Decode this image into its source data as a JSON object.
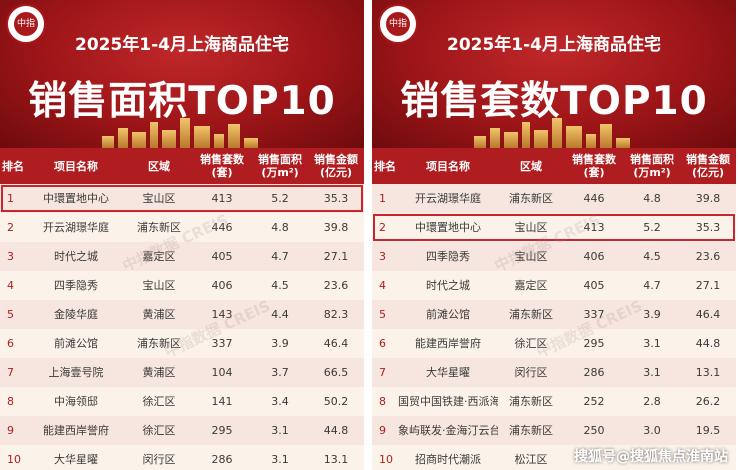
{
  "brand_logo_text": "中指",
  "left": {
    "year_title": "2025年1-4月上海商品住宅",
    "big_title": "销售面积TOP10",
    "headers": {
      "rank": "排名",
      "name": "项目名称",
      "area": "区域",
      "sets": "销售套数\n(套)",
      "sqm": "销售面积\n(万m²)",
      "amount": "销售金额\n(亿元)"
    },
    "rows": [
      [
        "1",
        "中環置地中心",
        "宝山区",
        "413",
        "5.2",
        "35.3"
      ],
      [
        "2",
        "开云湖璟华庭",
        "浦东新区",
        "446",
        "4.8",
        "39.8"
      ],
      [
        "3",
        "时代之城",
        "嘉定区",
        "405",
        "4.7",
        "27.1"
      ],
      [
        "4",
        "四季隐秀",
        "宝山区",
        "406",
        "4.5",
        "23.6"
      ],
      [
        "5",
        "金陵华庭",
        "黄浦区",
        "143",
        "4.4",
        "82.3"
      ],
      [
        "6",
        "前滩公馆",
        "浦东新区",
        "337",
        "3.9",
        "46.4"
      ],
      [
        "7",
        "上海壹号院",
        "黄浦区",
        "104",
        "3.7",
        "66.5"
      ],
      [
        "8",
        "中海领邸",
        "徐汇区",
        "141",
        "3.4",
        "50.2"
      ],
      [
        "9",
        "能建西岸誉府",
        "徐汇区",
        "295",
        "3.1",
        "44.8"
      ],
      [
        "10",
        "大华星曜",
        "闵行区",
        "286",
        "3.1",
        "13.1"
      ]
    ],
    "highlight_row": 0
  },
  "right": {
    "year_title": "2025年1-4月上海商品住宅",
    "big_title": "销售套数TOP10",
    "headers": {
      "rank": "排名",
      "name": "项目名称",
      "area": "区域",
      "sets": "销售套数\n(套)",
      "sqm": "销售面积\n(万m²)",
      "amount": "销售金额\n(亿元)"
    },
    "rows": [
      [
        "1",
        "开云湖璟华庭",
        "浦东新区",
        "446",
        "4.8",
        "39.8"
      ],
      [
        "2",
        "中環置地中心",
        "宝山区",
        "413",
        "5.2",
        "35.3"
      ],
      [
        "3",
        "四季隐秀",
        "宝山区",
        "406",
        "4.5",
        "23.6"
      ],
      [
        "4",
        "时代之城",
        "嘉定区",
        "405",
        "4.7",
        "27.1"
      ],
      [
        "5",
        "前滩公馆",
        "浦东新区",
        "337",
        "3.9",
        "46.4"
      ],
      [
        "6",
        "能建西岸誉府",
        "徐汇区",
        "295",
        "3.1",
        "44.8"
      ],
      [
        "7",
        "大华星曜",
        "闵行区",
        "286",
        "3.1",
        "13.1"
      ],
      [
        "8",
        "国贸中国铁建·西派海上",
        "浦东新区",
        "252",
        "2.8",
        "26.2"
      ],
      [
        "9",
        "象屿联发·金海汀云台",
        "浦东新区",
        "250",
        "3.0",
        "19.5"
      ],
      [
        "10",
        "招商时代潮派",
        "松江区",
        "",
        "",
        ""
      ]
    ],
    "highlight_row": 1
  },
  "watermark": "中指数据 CREIS",
  "footer_mark": "搜狐号@搜狐焦点淮南站",
  "colors": {
    "banner": "#9d1518",
    "header": "#b01d20",
    "row_odd": "#f7e6df",
    "row_even": "#fbf3ea",
    "highlight": "#c8262a"
  }
}
